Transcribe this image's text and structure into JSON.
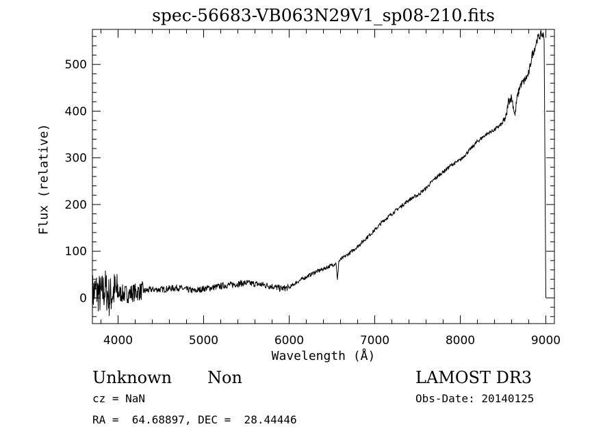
{
  "chart_data": {
    "type": "line",
    "title": "spec-56683-VB063N29V1_sp08-210.fits",
    "xlabel": "Wavelength (Å)",
    "ylabel": "Flux (relative)",
    "xlim": [
      3700,
      9100
    ],
    "ylim": [
      -55,
      575
    ],
    "xticks": [
      4000,
      5000,
      6000,
      7000,
      8000,
      9000
    ],
    "yticks": [
      0,
      100,
      200,
      300,
      400,
      500
    ],
    "grid": false,
    "series": [
      {
        "x": [
          3700,
          3750,
          3800,
          3850,
          3900,
          3950,
          4000,
          4100,
          4200,
          4300,
          4400,
          4500,
          4600,
          4700,
          4800,
          4900,
          5000,
          5100,
          5200,
          5300,
          5400,
          5500,
          5600,
          5700,
          5800,
          5900,
          6000,
          6100,
          6200,
          6300,
          6400,
          6500,
          6550,
          6563,
          6580,
          6600,
          6700,
          6800,
          6900,
          7000,
          7100,
          7200,
          7300,
          7400,
          7500,
          7600,
          7700,
          7800,
          7900,
          8000,
          8100,
          8200,
          8300,
          8400,
          8500,
          8540,
          8560,
          8600,
          8640,
          8660,
          8700,
          8750,
          8800,
          8840,
          8870,
          8900,
          8950,
          8980,
          9000
        ],
        "y": [
          10,
          15,
          5,
          20,
          0,
          15,
          10,
          8,
          12,
          15,
          18,
          18,
          20,
          22,
          18,
          15,
          20,
          22,
          25,
          28,
          30,
          32,
          30,
          28,
          25,
          20,
          22,
          35,
          45,
          55,
          62,
          70,
          75,
          35,
          78,
          82,
          95,
          110,
          128,
          145,
          165,
          180,
          195,
          210,
          220,
          235,
          255,
          270,
          285,
          295,
          315,
          335,
          350,
          360,
          375,
          390,
          420,
          430,
          390,
          425,
          455,
          465,
          480,
          520,
          535,
          555,
          565,
          560,
          0
        ]
      }
    ]
  },
  "info": {
    "obj_class": "Unknown",
    "obj_subclass": "Non",
    "survey": "LAMOST DR3",
    "cz": "cz = NaN",
    "obs_date": "Obs-Date: 20140125",
    "ra_dec": "RA =  64.68897, DEC =  28.44446"
  }
}
